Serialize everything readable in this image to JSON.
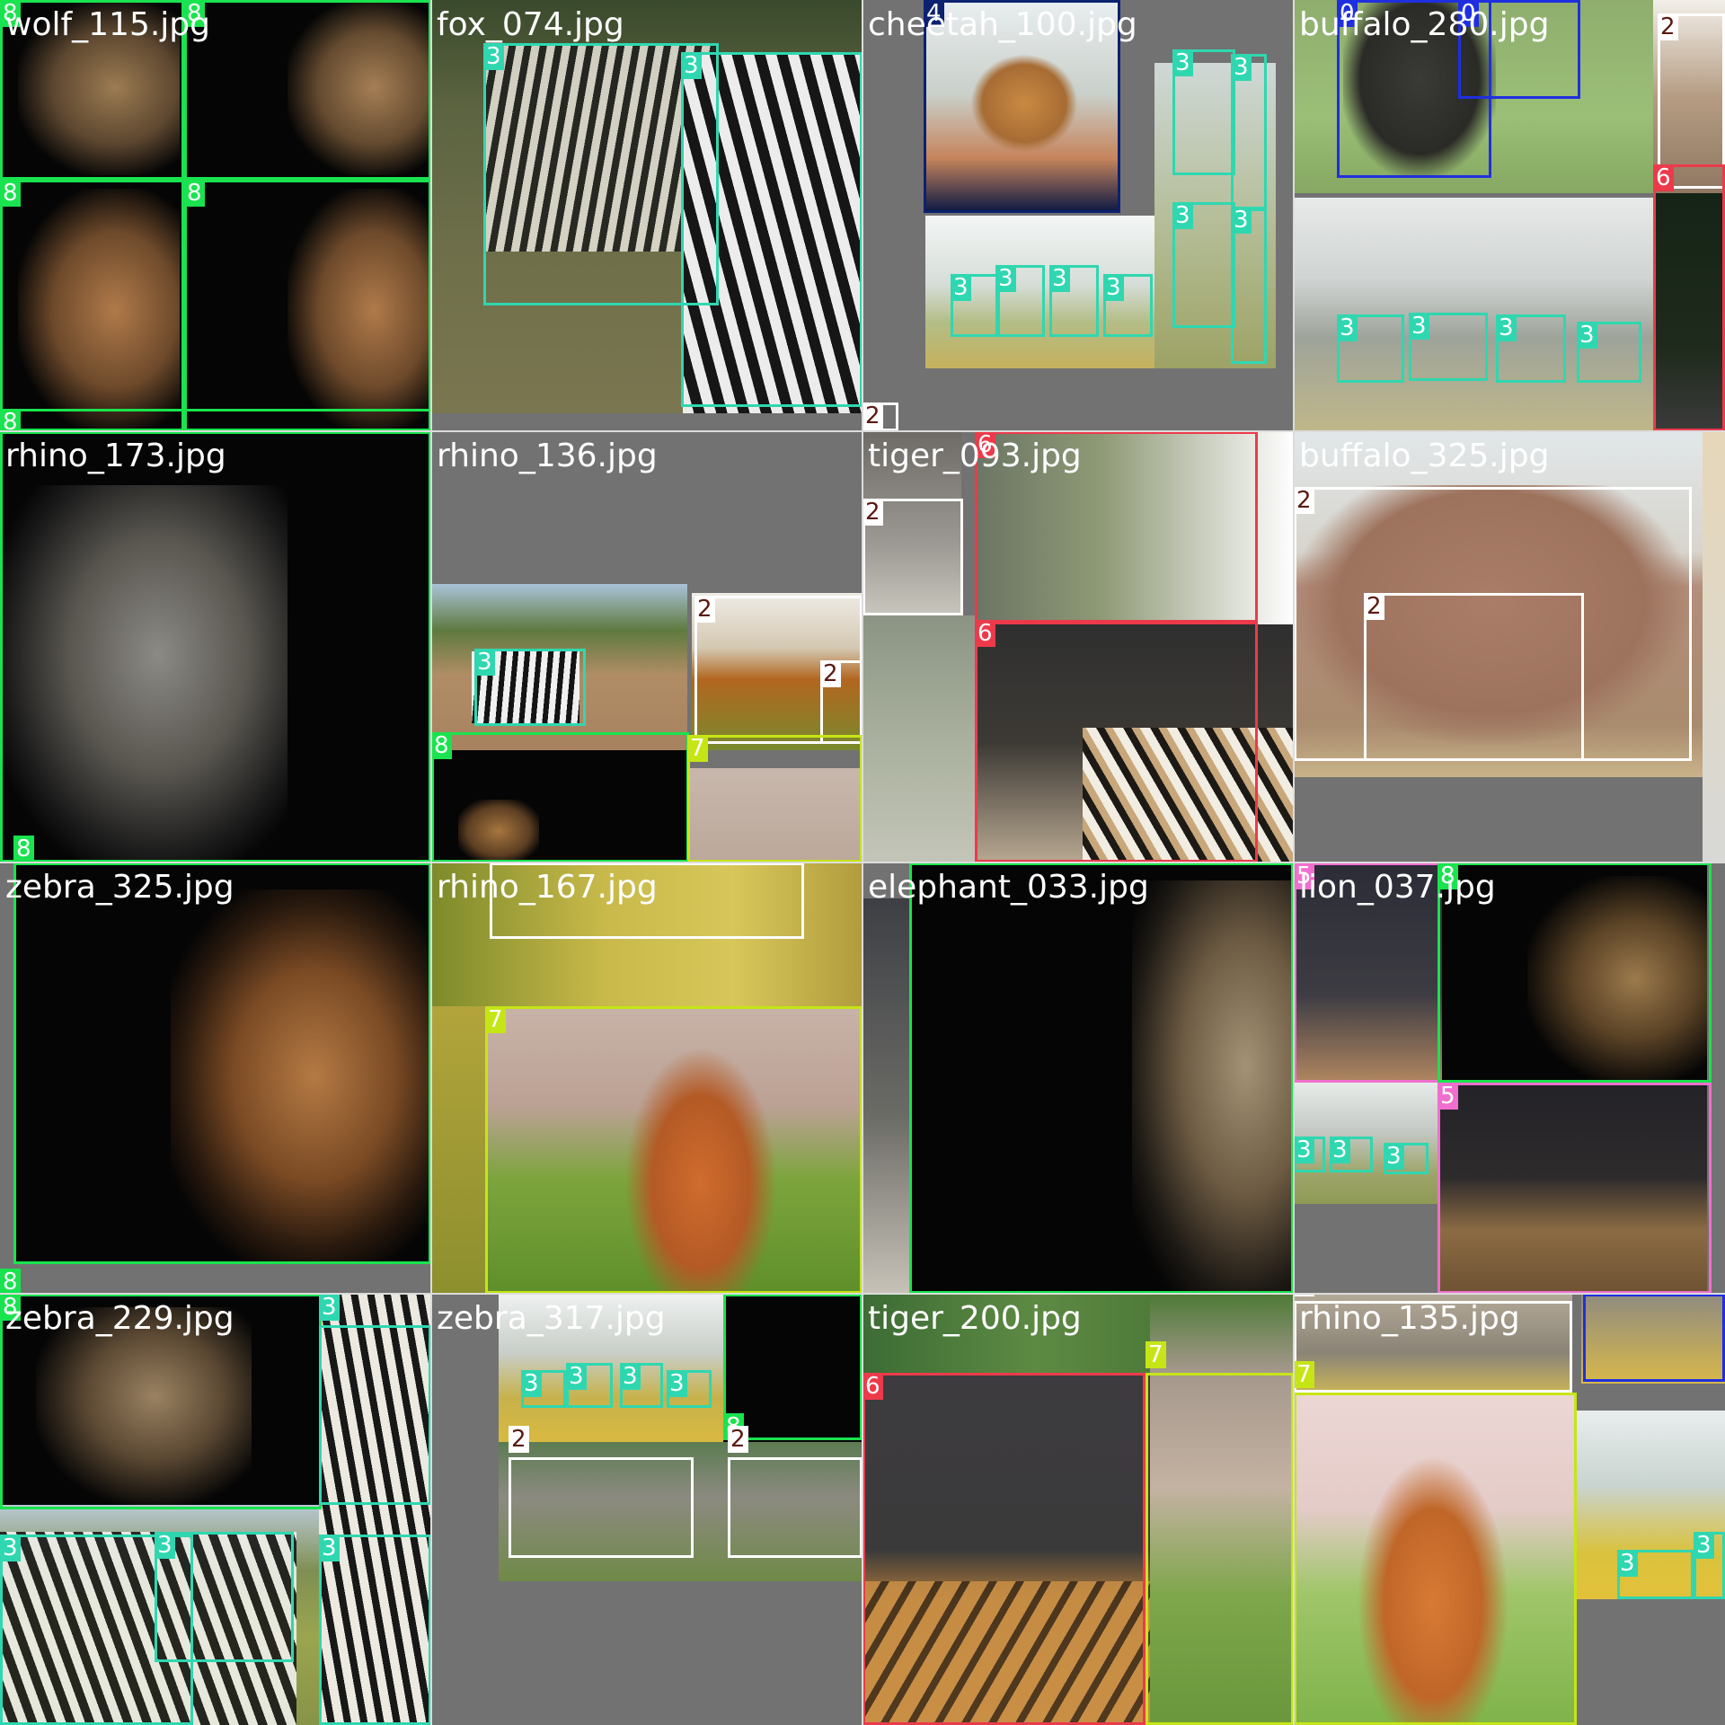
{
  "class_colors": {
    "0": "#1f2fe0",
    "2": "#ffffff",
    "3": "#2fd7b0",
    "4": "#0c2170",
    "5": "#f06fce",
    "6": "#ec3a4b",
    "7": "#c6e516",
    "8": "#19e34e"
  },
  "label_text_dark_for": [
    "2"
  ],
  "tiles": [
    {
      "filename": "wolf_115.jpg",
      "boxes": [
        {
          "class": "8"
        },
        {
          "class": "8"
        },
        {
          "class": "8"
        },
        {
          "class": "8"
        },
        {
          "class": "8"
        }
      ]
    },
    {
      "filename": "fox_074.jpg",
      "boxes": [
        {
          "class": "3"
        },
        {
          "class": "3"
        }
      ]
    },
    {
      "filename": "cheetah_100.jpg",
      "boxes": [
        {
          "class": "4"
        },
        {
          "class": "3"
        },
        {
          "class": "3"
        },
        {
          "class": "3"
        },
        {
          "class": "3"
        },
        {
          "class": "3"
        },
        {
          "class": "3"
        },
        {
          "class": "3"
        },
        {
          "class": "3"
        },
        {
          "class": "2"
        }
      ]
    },
    {
      "filename": "buffalo_280.jpg",
      "boxes": [
        {
          "class": "0"
        },
        {
          "class": "0"
        },
        {
          "class": "2"
        },
        {
          "class": "6"
        },
        {
          "class": "3"
        },
        {
          "class": "3"
        },
        {
          "class": "3"
        },
        {
          "class": "3"
        }
      ]
    },
    {
      "filename": "rhino_173.jpg",
      "boxes": [
        {
          "class": "8"
        }
      ]
    },
    {
      "filename": "rhino_136.jpg",
      "boxes": [
        {
          "class": "3"
        },
        {
          "class": "2"
        },
        {
          "class": "2"
        },
        {
          "class": "8"
        },
        {
          "class": "7"
        }
      ]
    },
    {
      "filename": "tiger_093.jpg",
      "boxes": [
        {
          "class": "2"
        },
        {
          "class": "6"
        },
        {
          "class": "6"
        }
      ]
    },
    {
      "filename": "buffalo_325.jpg",
      "boxes": [
        {
          "class": "2"
        },
        {
          "class": "2"
        }
      ]
    },
    {
      "filename": "zebra_325.jpg",
      "boxes": [
        {
          "class": "8"
        }
      ]
    },
    {
      "filename": "rhino_167.jpg",
      "boxes": [
        {
          "class": "2"
        },
        {
          "class": "7"
        }
      ]
    },
    {
      "filename": "elephant_033.jpg",
      "boxes": [
        {
          "class": "8"
        }
      ]
    },
    {
      "filename": "lion_037.jpg",
      "boxes": [
        {
          "class": "5"
        },
        {
          "class": "8"
        },
        {
          "class": "5"
        },
        {
          "class": "3"
        },
        {
          "class": "3"
        },
        {
          "class": "3"
        }
      ]
    },
    {
      "filename": "zebra_229.jpg",
      "boxes": [
        {
          "class": "8"
        },
        {
          "class": "3"
        },
        {
          "class": "3"
        },
        {
          "class": "3"
        },
        {
          "class": "3"
        }
      ]
    },
    {
      "filename": "zebra_317.jpg",
      "boxes": [
        {
          "class": "3"
        },
        {
          "class": "3"
        },
        {
          "class": "3"
        },
        {
          "class": "3"
        },
        {
          "class": "8"
        },
        {
          "class": "2"
        },
        {
          "class": "2"
        }
      ]
    },
    {
      "filename": "tiger_200.jpg",
      "boxes": [
        {
          "class": "6"
        },
        {
          "class": "7"
        }
      ]
    },
    {
      "filename": "rhino_135.jpg",
      "boxes": [
        {
          "class": "2"
        },
        {
          "class": "0"
        },
        {
          "class": "7"
        },
        {
          "class": "3"
        },
        {
          "class": "3"
        }
      ]
    }
  ]
}
